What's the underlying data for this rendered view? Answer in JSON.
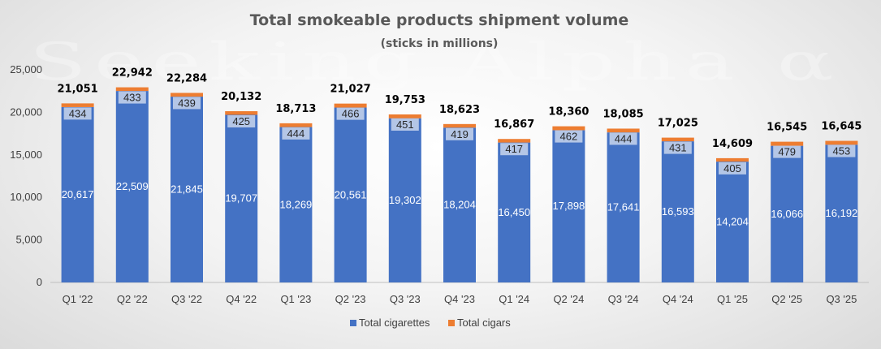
{
  "chart_data": {
    "type": "bar",
    "stacked": true,
    "title": "Total smokeable products shipment volume",
    "subtitle": "(sticks in millions)",
    "categories": [
      "Q1 '22",
      "Q2 '22",
      "Q3 '22",
      "Q4 '22",
      "Q1 '23",
      "Q2 '23",
      "Q3 '23",
      "Q4 '23",
      "Q1 '24",
      "Q2 '24",
      "Q3 '24",
      "Q4 '24",
      "Q1 '25",
      "Q2 '25",
      "Q3 '25"
    ],
    "series": [
      {
        "name": "Total cigarettes",
        "color": "#4472c4",
        "values": [
          20617,
          22509,
          21845,
          19707,
          18269,
          20561,
          19302,
          18204,
          16450,
          17898,
          17641,
          16593,
          14204,
          16066,
          16192
        ]
      },
      {
        "name": "Total cigars",
        "color": "#ed7d31",
        "values": [
          434,
          433,
          439,
          425,
          444,
          466,
          451,
          419,
          417,
          462,
          444,
          431,
          405,
          479,
          453
        ]
      }
    ],
    "totals": [
      21051,
      22942,
      22284,
      20132,
      18713,
      21027,
      19753,
      18623,
      16867,
      18360,
      18085,
      17025,
      14609,
      16545,
      16645
    ],
    "ylim": [
      0,
      25000
    ],
    "yticks": [
      0,
      5000,
      10000,
      15000,
      20000,
      25000
    ],
    "grid": false,
    "legend_position": "bottom",
    "watermark": "Seeking Alpha α"
  }
}
